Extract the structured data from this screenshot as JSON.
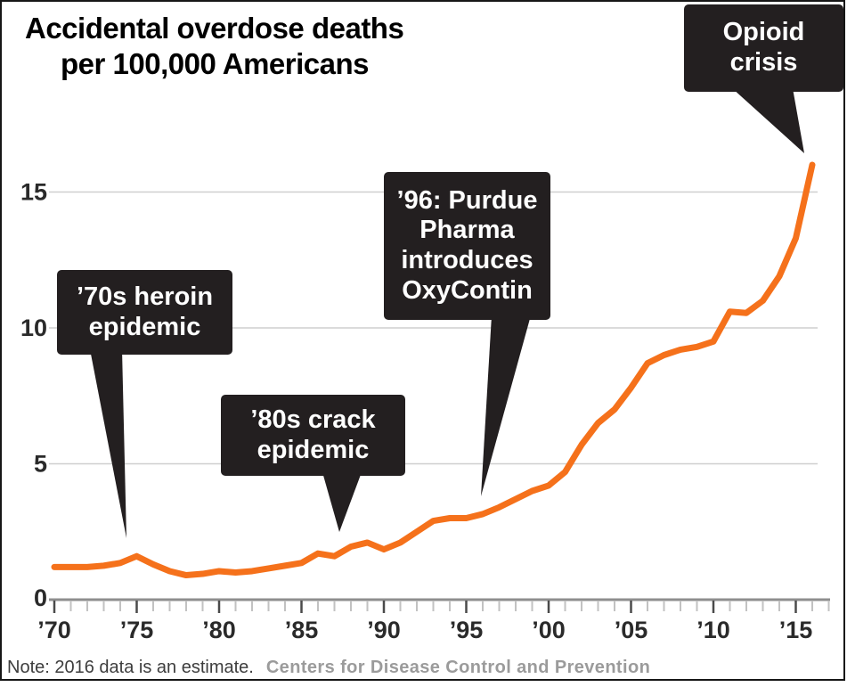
{
  "title": {
    "line1": "Accidental overdose deaths",
    "line2": "per 100,000 Americans"
  },
  "note": {
    "text": "Note: 2016 data is an estimate.",
    "source": "Centers for Disease Control and Prevention"
  },
  "annotations": {
    "heroin": {
      "lines": [
        "’70s heroin",
        "epidemic"
      ],
      "text": "’70s heroin epidemic",
      "points_to_year": 1974
    },
    "crack": {
      "lines": [
        "’80s crack",
        "epidemic"
      ],
      "text": "’80s crack epidemic",
      "points_to_year": 1987
    },
    "purdue": {
      "lines": [
        "’96: Purdue",
        "Pharma",
        "introduces",
        "OxyContin"
      ],
      "text": "’96: Purdue Pharma introduces OxyContin",
      "points_to_year": 1996
    },
    "opioid": {
      "lines": [
        "Opioid",
        "crisis"
      ],
      "text": "Opioid crisis",
      "points_to_year": 2016
    }
  },
  "colors": {
    "line": "#F5711B",
    "callout_bg": "#231f20",
    "callout_text": "#ffffff",
    "gridline": "#cfcfcf",
    "axis": "#8e8e8e",
    "major_tick": "#4a4a4a",
    "minor_tick": "#c2c2c2",
    "tick_label": "#2a2a2a"
  },
  "chart_data": {
    "type": "line",
    "title": "Accidental overdose deaths per 100,000 Americans",
    "xlabel": "",
    "ylabel": "Deaths per 100,000 Americans",
    "grid": "horizontal gridlines at 5, 10, 15; legend none",
    "xlim": [
      1970,
      2017
    ],
    "ylim": [
      0,
      17
    ],
    "x": [
      1970,
      1971,
      1972,
      1973,
      1974,
      1975,
      1976,
      1977,
      1978,
      1979,
      1980,
      1981,
      1982,
      1983,
      1984,
      1985,
      1986,
      1987,
      1988,
      1989,
      1990,
      1991,
      1992,
      1993,
      1994,
      1995,
      1996,
      1997,
      1998,
      1999,
      2000,
      2001,
      2002,
      2003,
      2004,
      2005,
      2006,
      2007,
      2008,
      2009,
      2010,
      2011,
      2012,
      2013,
      2014,
      2015,
      2016
    ],
    "values": [
      1.2,
      1.2,
      1.2,
      1.25,
      1.35,
      1.6,
      1.3,
      1.05,
      0.9,
      0.95,
      1.05,
      1.0,
      1.05,
      1.15,
      1.25,
      1.35,
      1.7,
      1.6,
      1.95,
      2.1,
      1.85,
      2.1,
      2.5,
      2.9,
      3.0,
      3.0,
      3.15,
      3.4,
      3.7,
      4.0,
      4.2,
      4.7,
      5.7,
      6.5,
      7.0,
      7.8,
      8.7,
      9.0,
      9.2,
      9.3,
      9.5,
      10.6,
      10.55,
      11.0,
      11.9,
      13.3,
      16.0
    ],
    "y_ticks": [
      0,
      5,
      10,
      15
    ],
    "y_gridlines": [
      5,
      10,
      15
    ],
    "x_major_ticks": [
      1970,
      1975,
      1980,
      1985,
      1990,
      1995,
      2000,
      2005,
      2010,
      2015
    ],
    "x_tick_labels": [
      "’70",
      "’75",
      "’80",
      "’85",
      "’90",
      "’95",
      "’00",
      "’05",
      "’10",
      "’15"
    ],
    "minor_tick_every_years": 1
  }
}
